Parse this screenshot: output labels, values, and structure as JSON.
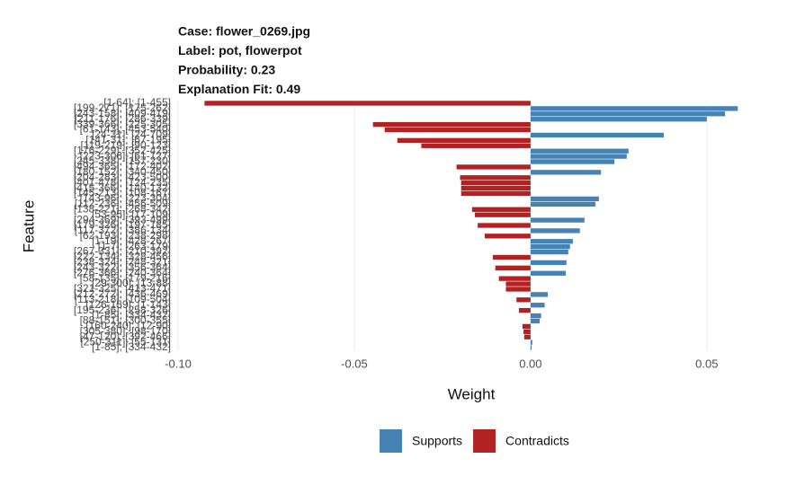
{
  "chart_data": {
    "type": "barh",
    "title_lines": [
      "Case: flower_0269.jpg",
      "Label: pot, flowerpot",
      "Probability: 0.23",
      "Explanation Fit: 0.49"
    ],
    "x_label": "Weight",
    "y_label": "Feature",
    "categories": [
      "[1-64]; [1-455]",
      "[199-271]; [175-262]",
      "[243-158]; [409-419]",
      "[211-176]; [286-339]",
      "[339-366]; [225-305]",
      "[61-143]; [453-540]",
      "[24-31]; [24-709]",
      "[141-31]; [67-195]",
      "[119-219]; [90-123]",
      "[176-229]; [352-425]",
      "[223-306]; [61-127]",
      "[245-338]; [157-230]",
      "[494-365]; [172-402]",
      "[180-152]; [340-450]",
      "[204-283]; [423-500]",
      "[401-478]; [124-235]",
      "[415-366]; [140-132]",
      "[145-213]; [108-167]",
      "[143-96]; [223-304]",
      "[112-236]; [456-509]",
      "[138-221]; [268-342]",
      "[53-95]; [17-109]",
      "[294-369]; [393-499]",
      "[179-326]; [197-185]",
      "[117-372]; [386-134]",
      "[62-193]; [238-298]",
      "[1-19]; [428-267]",
      "[1-7]; [263-179]",
      "[267-331]; [210-392]",
      "[222-134]; [328-456]",
      "[238-324]; [248-321]",
      "[243-322]; [356-364]",
      "[276-366]; [240-364]",
      "[58-135]; [179-216]",
      "[29-300]; [13-88]",
      "[321-325]; [413-471]",
      "[212-272]; [436-469]",
      "[113-218]; [109-504]",
      "[126-159]; [1-143]",
      "[195-236]; [258-326]",
      "[1-85]; [334-432]",
      "[88-151]; [300-355]",
      "[160-240]; [12-90]",
      "[305-380]; [98-170]",
      "[47-120]; [392-466]",
      "[250-311]; [55-131]",
      "[1-85]; [334-432]"
    ],
    "series": [
      {
        "name": "Supports",
        "color": "#4682b4",
        "values": [
          null,
          0.0588,
          0.0552,
          0.05,
          null,
          null,
          0.0378,
          null,
          null,
          0.0278,
          0.0273,
          0.0238,
          null,
          0.02,
          null,
          null,
          null,
          null,
          0.0194,
          0.0184,
          null,
          null,
          0.0153,
          null,
          0.014,
          null,
          0.012,
          0.0112,
          0.0107,
          null,
          0.0102,
          null,
          0.01,
          null,
          null,
          null,
          0.0049,
          null,
          0.004,
          null,
          0.003,
          0.0026,
          null,
          null,
          null,
          0.0005,
          0.0003
        ]
      },
      {
        "name": "Contradicts",
        "color": "#b22222",
        "values": [
          -0.0925,
          null,
          null,
          null,
          -0.0447,
          -0.0414,
          null,
          -0.0378,
          -0.031,
          null,
          null,
          null,
          -0.021,
          null,
          -0.02,
          -0.0197,
          -0.0197,
          -0.0197,
          null,
          null,
          -0.0166,
          -0.0158,
          null,
          -0.015,
          null,
          -0.013,
          null,
          null,
          null,
          -0.0107,
          null,
          -0.01,
          null,
          -0.009,
          -0.007,
          -0.007,
          null,
          -0.004,
          null,
          -0.0033,
          null,
          null,
          -0.0023,
          -0.002,
          -0.0018,
          null,
          null
        ]
      }
    ],
    "xlim": [
      -0.1,
      0.06
    ],
    "xticks": [
      {
        "value": -0.1,
        "label": "-0.10"
      },
      -0.05,
      {
        "value": 0,
        "label": "0.00"
      },
      0.05
    ],
    "grid": true,
    "legend": "bottom"
  }
}
